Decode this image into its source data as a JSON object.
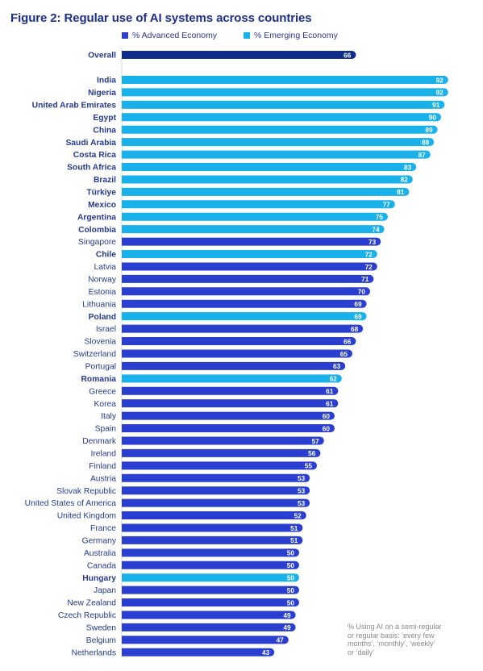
{
  "chart_data": {
    "type": "bar",
    "orientation": "horizontal",
    "title": "Figure 2: Regular use of AI systems across countries",
    "legend": [
      {
        "key": "advanced",
        "name": "% Advanced Economy",
        "color": "#2a3fcf"
      },
      {
        "key": "emerging",
        "name": "% Emerging Economy",
        "color": "#19b1ea"
      }
    ],
    "overall": {
      "label": "Overall",
      "value": 66,
      "color": "#0f2d8c"
    },
    "categories": [
      "India",
      "Nigeria",
      "United Arab Emirates",
      "Egypt",
      "China",
      "Saudi Arabia",
      "Costa Rica",
      "South Africa",
      "Brazil",
      "Türkiye",
      "Mexico",
      "Argentina",
      "Colombia",
      "Singapore",
      "Chile",
      "Latvia",
      "Norway",
      "Estonia",
      "Lithuania",
      "Poland",
      "Israel",
      "Slovenia",
      "Switzerland",
      "Portugal",
      "Romania",
      "Greece",
      "Korea",
      "Italy",
      "Spain",
      "Denmark",
      "Ireland",
      "Finland",
      "Austria",
      "Slovak Republic",
      "United States of America",
      "United Kingdom",
      "France",
      "Germany",
      "Australia",
      "Canada",
      "Hungary",
      "Japan",
      "New Zealand",
      "Czech Republic",
      "Sweden",
      "Belgium",
      "Netherlands"
    ],
    "values": [
      92,
      92,
      91,
      90,
      89,
      88,
      87,
      83,
      82,
      81,
      77,
      75,
      74,
      73,
      72,
      72,
      71,
      70,
      69,
      69,
      68,
      66,
      65,
      63,
      62,
      61,
      61,
      60,
      60,
      57,
      56,
      55,
      53,
      53,
      53,
      52,
      51,
      51,
      50,
      50,
      50,
      50,
      50,
      49,
      49,
      47,
      43
    ],
    "economy": [
      "emerging",
      "emerging",
      "emerging",
      "emerging",
      "emerging",
      "emerging",
      "emerging",
      "emerging",
      "emerging",
      "emerging",
      "emerging",
      "emerging",
      "emerging",
      "advanced",
      "emerging",
      "advanced",
      "advanced",
      "advanced",
      "advanced",
      "emerging",
      "advanced",
      "advanced",
      "advanced",
      "advanced",
      "emerging",
      "advanced",
      "advanced",
      "advanced",
      "advanced",
      "advanced",
      "advanced",
      "advanced",
      "advanced",
      "advanced",
      "advanced",
      "advanced",
      "advanced",
      "advanced",
      "advanced",
      "advanced",
      "emerging",
      "advanced",
      "advanced",
      "advanced",
      "advanced",
      "advanced",
      "advanced"
    ],
    "axis_range": [
      0,
      100
    ],
    "grid": false
  },
  "note_lines": [
    "% Using AI on a semi-regular",
    "or regular basis: ‘every few",
    "months’, ‘monthly’, ‘weekly’",
    "or ‘daily’"
  ]
}
